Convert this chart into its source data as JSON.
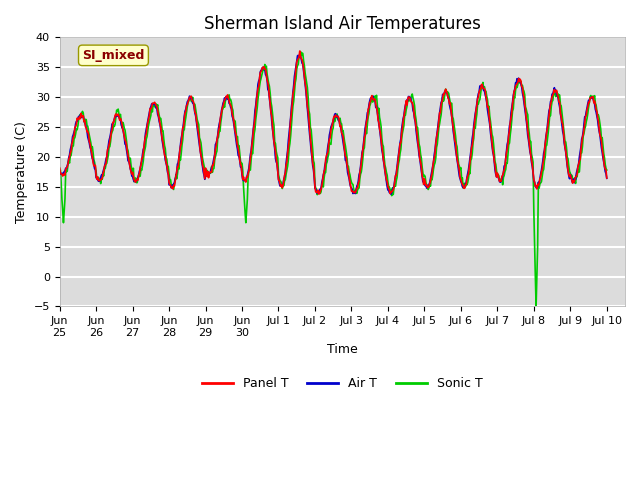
{
  "title": "Sherman Island Air Temperatures",
  "xlabel": "Time",
  "ylabel": "Temperature (C)",
  "ylim": [
    -5,
    40
  ],
  "background_color": "#dcdcdc",
  "plot_bg_color": "#dcdcdc",
  "grid_color": "white",
  "line_colors": {
    "panel": "#ff0000",
    "air": "#0000cc",
    "sonic": "#00cc00"
  },
  "line_widths": {
    "panel": 1.2,
    "air": 1.2,
    "sonic": 1.2
  },
  "legend_labels": [
    "Panel T",
    "Air T",
    "Sonic T"
  ],
  "annotation_text": "SI_mixed",
  "yticks": [
    -5,
    0,
    5,
    10,
    15,
    20,
    25,
    30,
    35,
    40
  ],
  "title_fontsize": 12,
  "axis_fontsize": 9,
  "tick_fontsize": 8,
  "xlim": [
    0,
    15.5
  ],
  "tick_positions": [
    0,
    1,
    2,
    3,
    4,
    5,
    6,
    7,
    8,
    9,
    10,
    11,
    12,
    13,
    14,
    15
  ],
  "tick_labels": [
    "Jun 25",
    "Jun 26",
    "Jun 27",
    "Jun 28",
    "Jun 29",
    "Jun 30",
    "Jul 1",
    "Jul 2",
    "Jul 3",
    "Jul 4",
    "Jul 5",
    "Jul 6",
    "Jul 7",
    "Jul 8",
    "Jul 9",
    "Jul 10"
  ]
}
